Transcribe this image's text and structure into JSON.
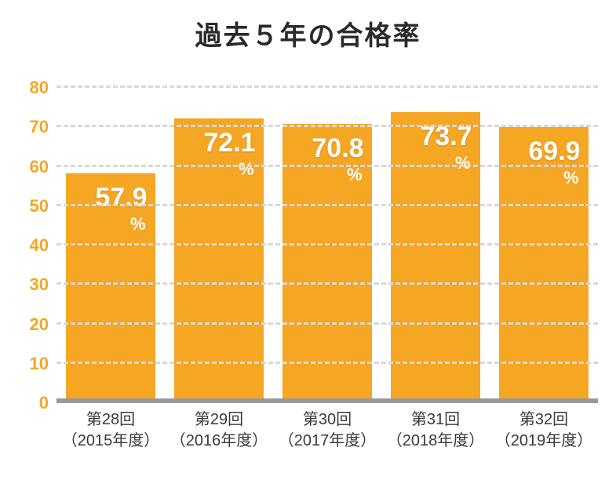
{
  "chart": {
    "type": "bar",
    "title": "過去５年の合格率",
    "title_fontsize": 34,
    "title_color": "#2a2a2a",
    "background_color": "#ffffff",
    "grid_color": "#d9d9d9",
    "baseline_color": "#999999",
    "bar_color": "#f5a623",
    "value_text_color": "#ffffff",
    "ylim": [
      0,
      80
    ],
    "ytick_step": 10,
    "yticks": [
      0,
      10,
      20,
      30,
      40,
      50,
      60,
      70,
      80
    ],
    "ytick_fontsize": 22,
    "ytick_color": "#f5a623",
    "value_fontsize": 34,
    "percent_fontsize": 22,
    "xlabel_fontsize": 20,
    "xlabel_color": "#3a3a3a",
    "bar_width_ratio": 0.82,
    "categories": [
      {
        "line1": "第28回",
        "line2": "（2015年度）",
        "value": 57.9,
        "value_label": "57.9",
        "pct": "%"
      },
      {
        "line1": "第29回",
        "line2": "（2016年度）",
        "value": 72.1,
        "value_label": "72.1",
        "pct": "%"
      },
      {
        "line1": "第30回",
        "line2": "（2017年度）",
        "value": 70.8,
        "value_label": "70.8",
        "pct": "%"
      },
      {
        "line1": "第31回",
        "line2": "（2018年度）",
        "value": 73.7,
        "value_label": "73.7",
        "pct": "%"
      },
      {
        "line1": "第32回",
        "line2": "（2019年度）",
        "value": 69.9,
        "value_label": "69.9",
        "pct": "%"
      }
    ]
  }
}
